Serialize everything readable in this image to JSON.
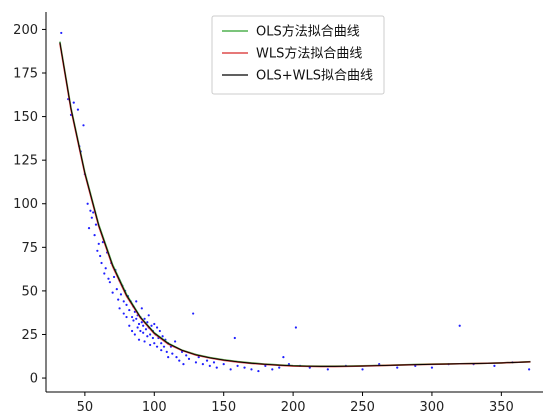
{
  "chart_data": {
    "type": "scatter",
    "title": "",
    "xlabel": "",
    "ylabel": "",
    "xlim": [
      22,
      380
    ],
    "ylim": [
      -8,
      210
    ],
    "x_ticks": [
      50,
      100,
      150,
      200,
      250,
      300,
      350
    ],
    "y_ticks": [
      0,
      25,
      50,
      75,
      100,
      125,
      150,
      175,
      200
    ],
    "x_tick_labels": [
      "50",
      "100",
      "150",
      "200",
      "250",
      "300",
      "350"
    ],
    "y_tick_labels": [
      "0",
      "25",
      "50",
      "75",
      "100",
      "125",
      "150",
      "175",
      "200"
    ],
    "legend_position": "top-center",
    "grid": false,
    "spines": "left-bottom",
    "scatter": {
      "color": "#1f1fff",
      "points": [
        [
          33,
          198
        ],
        [
          38,
          160
        ],
        [
          40,
          151
        ],
        [
          42,
          158
        ],
        [
          45,
          154
        ],
        [
          46,
          133
        ],
        [
          47,
          130
        ],
        [
          49,
          145
        ],
        [
          50,
          117
        ],
        [
          52,
          100
        ],
        [
          53,
          86
        ],
        [
          54,
          96
        ],
        [
          55,
          92
        ],
        [
          56,
          95
        ],
        [
          57,
          82
        ],
        [
          58,
          88
        ],
        [
          59,
          73
        ],
        [
          60,
          77
        ],
        [
          61,
          70
        ],
        [
          62,
          66
        ],
        [
          63,
          78
        ],
        [
          64,
          60
        ],
        [
          65,
          63
        ],
        [
          66,
          72
        ],
        [
          67,
          57
        ],
        [
          68,
          55
        ],
        [
          69,
          66
        ],
        [
          70,
          49
        ],
        [
          71,
          58
        ],
        [
          72,
          62
        ],
        [
          73,
          51
        ],
        [
          74,
          45
        ],
        [
          75,
          56
        ],
        [
          75,
          40
        ],
        [
          76,
          48
        ],
        [
          77,
          53
        ],
        [
          78,
          44
        ],
        [
          78,
          37
        ],
        [
          79,
          50
        ],
        [
          80,
          42
        ],
        [
          80,
          35
        ],
        [
          81,
          47
        ],
        [
          82,
          39
        ],
        [
          82,
          30
        ],
        [
          83,
          44
        ],
        [
          84,
          35
        ],
        [
          84,
          27
        ],
        [
          85,
          41
        ],
        [
          85,
          33
        ],
        [
          86,
          38
        ],
        [
          86,
          25
        ],
        [
          87,
          34
        ],
        [
          87,
          44
        ],
        [
          88,
          29
        ],
        [
          88,
          36
        ],
        [
          89,
          31
        ],
        [
          89,
          22
        ],
        [
          90,
          35
        ],
        [
          90,
          27
        ],
        [
          91,
          32
        ],
        [
          91,
          40
        ],
        [
          92,
          26
        ],
        [
          92,
          30
        ],
        [
          93,
          34
        ],
        [
          93,
          21
        ],
        [
          94,
          28
        ],
        [
          95,
          32
        ],
        [
          95,
          24
        ],
        [
          96,
          29
        ],
        [
          96,
          36
        ],
        [
          97,
          25
        ],
        [
          97,
          19
        ],
        [
          98,
          30
        ],
        [
          99,
          23
        ],
        [
          99,
          27
        ],
        [
          100,
          31
        ],
        [
          100,
          20
        ],
        [
          101,
          25
        ],
        [
          102,
          29
        ],
        [
          102,
          18
        ],
        [
          103,
          23
        ],
        [
          104,
          27
        ],
        [
          105,
          20
        ],
        [
          105,
          16
        ],
        [
          106,
          24
        ],
        [
          107,
          18
        ],
        [
          108,
          22
        ],
        [
          109,
          15
        ],
        [
          110,
          20
        ],
        [
          110,
          12
        ],
        [
          112,
          18
        ],
        [
          113,
          14
        ],
        [
          115,
          21
        ],
        [
          116,
          12
        ],
        [
          118,
          10
        ],
        [
          120,
          15
        ],
        [
          121,
          8
        ],
        [
          123,
          13
        ],
        [
          125,
          11
        ],
        [
          128,
          37
        ],
        [
          130,
          9
        ],
        [
          132,
          12
        ],
        [
          135,
          8
        ],
        [
          138,
          10
        ],
        [
          140,
          7
        ],
        [
          143,
          9
        ],
        [
          145,
          6
        ],
        [
          150,
          8
        ],
        [
          155,
          5
        ],
        [
          158,
          23
        ],
        [
          160,
          7
        ],
        [
          165,
          6
        ],
        [
          170,
          5
        ],
        [
          175,
          4
        ],
        [
          180,
          7
        ],
        [
          185,
          5
        ],
        [
          190,
          6
        ],
        [
          193,
          12
        ],
        [
          197,
          8
        ],
        [
          202,
          29
        ],
        [
          205,
          7
        ],
        [
          212,
          6
        ],
        [
          225,
          5
        ],
        [
          238,
          7
        ],
        [
          250,
          5
        ],
        [
          262,
          8
        ],
        [
          275,
          6
        ],
        [
          288,
          7
        ],
        [
          300,
          6
        ],
        [
          312,
          8
        ],
        [
          320,
          30
        ],
        [
          330,
          8
        ],
        [
          345,
          7
        ],
        [
          358,
          9
        ],
        [
          370,
          5
        ]
      ]
    },
    "series": [
      {
        "name": "OLS方法拟合曲线",
        "color": "#2ca02c",
        "x": [
          32,
          40,
          50,
          60,
          70,
          80,
          90,
          100,
          110,
          120,
          130,
          140,
          150,
          160,
          170,
          180,
          190,
          200,
          210,
          220,
          230,
          240,
          250,
          260,
          270,
          280,
          290,
          300,
          310,
          320,
          330,
          340,
          350,
          360,
          371
        ],
        "y": [
          193,
          155,
          118,
          88,
          65,
          48,
          35,
          26,
          20,
          16,
          13.5,
          11.8,
          10.5,
          9.5,
          8.7,
          8.0,
          7.5,
          7.1,
          6.9,
          6.8,
          6.8,
          6.9,
          7.0,
          7.2,
          7.4,
          7.6,
          7.8,
          8.0,
          8.1,
          8.2,
          8.3,
          8.5,
          8.7,
          9.0,
          9.4
        ]
      },
      {
        "name": "WLS方法拟合曲线",
        "color": "#d62728",
        "x": [
          32,
          40,
          50,
          60,
          70,
          80,
          90,
          100,
          110,
          120,
          130,
          140,
          150,
          160,
          170,
          180,
          190,
          200,
          210,
          220,
          230,
          240,
          250,
          260,
          270,
          280,
          290,
          300,
          310,
          320,
          330,
          340,
          350,
          360,
          371
        ],
        "y": [
          192,
          154,
          117,
          87,
          64,
          47,
          34.5,
          25.5,
          19.5,
          15.8,
          13.2,
          11.5,
          10.2,
          9.2,
          8.4,
          7.8,
          7.3,
          6.9,
          6.7,
          6.6,
          6.6,
          6.7,
          6.9,
          7.1,
          7.3,
          7.5,
          7.7,
          7.9,
          8.0,
          8.2,
          8.3,
          8.5,
          8.7,
          9.0,
          9.3
        ]
      },
      {
        "name": "OLS+WLS拟合曲线",
        "color": "#000000",
        "x": [
          32,
          40,
          50,
          60,
          70,
          80,
          90,
          100,
          110,
          120,
          130,
          140,
          150,
          160,
          170,
          180,
          190,
          200,
          210,
          220,
          230,
          240,
          250,
          260,
          270,
          280,
          290,
          300,
          310,
          320,
          330,
          340,
          350,
          360,
          371
        ],
        "y": [
          192.5,
          154.5,
          117.5,
          87.5,
          64.5,
          47.5,
          34.8,
          25.8,
          19.8,
          15.9,
          13.3,
          11.6,
          10.3,
          9.3,
          8.5,
          7.9,
          7.4,
          7.0,
          6.8,
          6.7,
          6.7,
          6.8,
          6.9,
          7.1,
          7.3,
          7.5,
          7.7,
          7.9,
          8.0,
          8.2,
          8.3,
          8.5,
          8.7,
          9.0,
          9.3
        ]
      }
    ]
  }
}
